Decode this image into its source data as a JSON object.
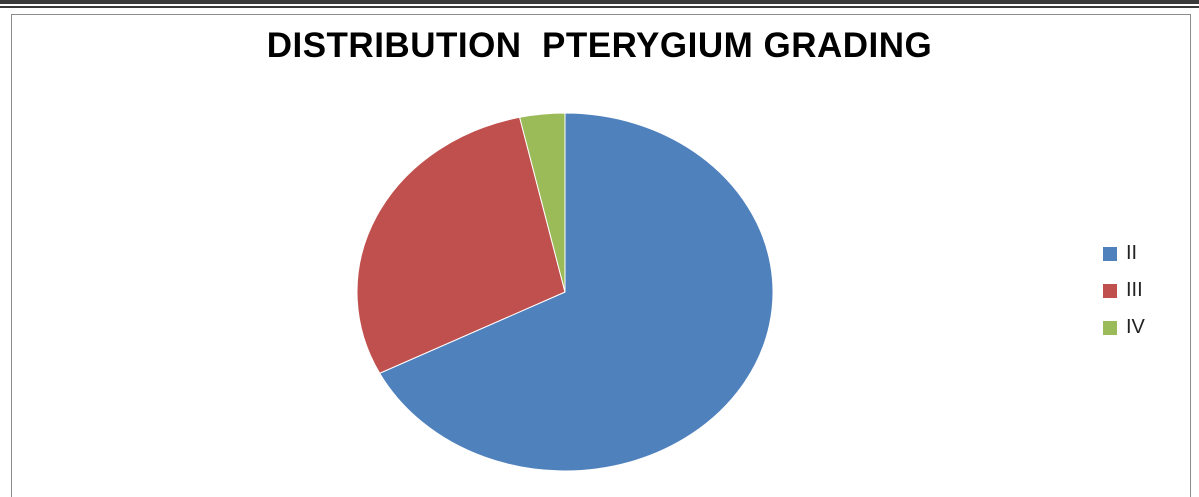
{
  "chart_data": {
    "type": "pie",
    "title": "DISTRIBUTION  PTERYGIUM GRADING",
    "categories": [
      "II",
      "III",
      "IV"
    ],
    "values": [
      67.5,
      29.0,
      3.5
    ],
    "colors": [
      "#4f81bd",
      "#c0504d",
      "#9bbb59"
    ],
    "legend_position": "right",
    "start_angle": "top, clockwise"
  }
}
